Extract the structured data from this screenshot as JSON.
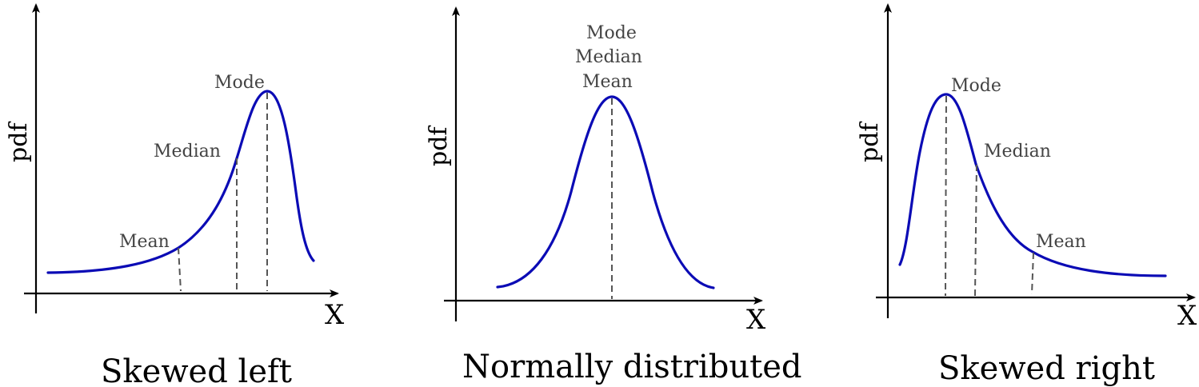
{
  "panels": [
    {
      "caption": "Skewed left",
      "y_axis_label": "pdf",
      "x_axis_label": "X",
      "annotations": {
        "mode": "Mode",
        "median": "Median",
        "mean": "Mean"
      }
    },
    {
      "caption": "Normally distributed",
      "y_axis_label": "pdf",
      "x_axis_label": "X",
      "annotations": {
        "mode": "Mode",
        "median": "Median",
        "mean": "Mean"
      }
    },
    {
      "caption": "Skewed right",
      "y_axis_label": "pdf",
      "x_axis_label": "X",
      "annotations": {
        "mode": "Mode",
        "median": "Median",
        "mean": "Mean"
      }
    }
  ],
  "colors": {
    "curve": "#0b0bb5",
    "annotation_text": "#444444",
    "guide_line": "#555555"
  }
}
